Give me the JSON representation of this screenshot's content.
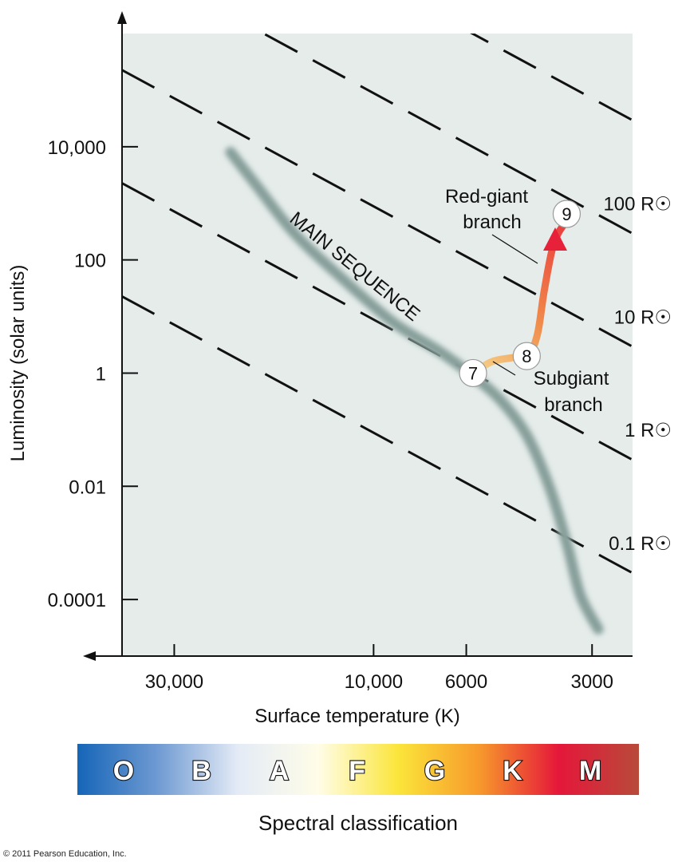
{
  "chart_data": {
    "type": "scatter",
    "xlabel": "Surface temperature (K)",
    "ylabel": "Luminosity (solar units)",
    "x_scale": "log",
    "y_scale": "log",
    "x_reversed": true,
    "xlim": [
      40000,
      2400
    ],
    "ylim": [
      1e-05,
      1000000
    ],
    "x_ticks": [
      {
        "value": 30000,
        "label": "30,000"
      },
      {
        "value": 10000,
        "label": "10,000"
      },
      {
        "value": 6000,
        "label": "6000"
      },
      {
        "value": 3000,
        "label": "3000"
      }
    ],
    "y_ticks": [
      {
        "value": 10000,
        "label": "10,000"
      },
      {
        "value": 100,
        "label": "100"
      },
      {
        "value": 1,
        "label": "1"
      },
      {
        "value": 0.01,
        "label": "0.01"
      },
      {
        "value": 0.0001,
        "label": "0.0001"
      }
    ],
    "main_sequence": {
      "label": "MAIN SEQUENCE",
      "points": [
        [
          22000,
          8000
        ],
        [
          19000,
          2000
        ],
        [
          15500,
          300
        ],
        [
          12000,
          50
        ],
        [
          9000,
          8
        ],
        [
          7000,
          2.5
        ],
        [
          5900,
          1
        ],
        [
          5000,
          0.35
        ],
        [
          4300,
          0.08
        ],
        [
          3800,
          0.01
        ],
        [
          3450,
          0.001
        ],
        [
          3200,
          0.00012
        ],
        [
          2900,
          3e-05
        ]
      ]
    },
    "radius_lines": [
      {
        "label": "",
        "exponent": 3
      },
      {
        "label": "100 R☉",
        "exponent": 2
      },
      {
        "label": "10 R☉",
        "exponent": 1
      },
      {
        "label": "1 R☉",
        "exponent": 0
      },
      {
        "label": "0.1 R☉",
        "exponent": -1
      }
    ],
    "evolution_track": {
      "points": [
        [
          5780,
          1
        ],
        [
          5200,
          1.6
        ],
        [
          4600,
          1.9
        ],
        [
          4250,
          2.2
        ],
        [
          4050,
          5
        ],
        [
          3900,
          30
        ],
        [
          3700,
          200
        ],
        [
          3450,
          500
        ]
      ],
      "stages": [
        {
          "label": "7",
          "temperature": 5780,
          "luminosity": 1
        },
        {
          "label": "8",
          "temperature": 4300,
          "luminosity": 2.0
        },
        {
          "label": "9",
          "temperature": 3450,
          "luminosity": 650
        }
      ]
    },
    "annotations": {
      "red_giant": [
        "Red-giant",
        "branch"
      ],
      "subgiant": [
        "Subgiant",
        "branch"
      ]
    },
    "spectral": {
      "title": "Spectral classification",
      "classes": [
        "O",
        "B",
        "A",
        "F",
        "G",
        "K",
        "M"
      ],
      "colors": [
        "#1565b8",
        "#6f9ad2",
        "#e4ebf6",
        "#fffde8",
        "#fbe53a",
        "#f79a2c",
        "#e5173a",
        "#b84a3a"
      ]
    },
    "colors": {
      "plot_background": "#e5ecea",
      "main_sequence": "#93aaa6",
      "track_start": "#f8ea9c",
      "track_mid": "#f08a4a",
      "track_end": "#e8213a"
    }
  },
  "copyright": "© 2011 Pearson Education, Inc."
}
